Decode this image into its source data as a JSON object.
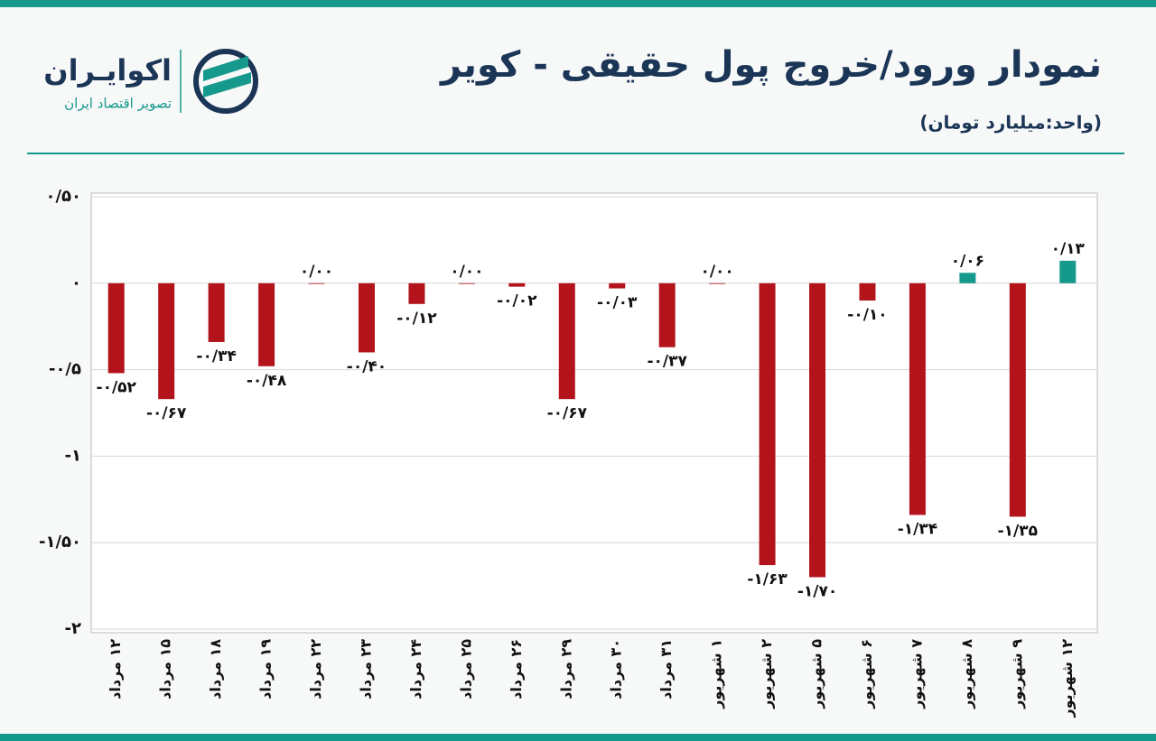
{
  "logo": {
    "name": "اکوایـران",
    "tagline": "تصویر اقتصاد ایران"
  },
  "chart_data": {
    "type": "bar",
    "title": "نمودار ورود/خروج پول حقیقی - کویر",
    "subtitle": "(واحد:میلیارد تومان)",
    "categories": [
      "۱۲ مرداد",
      "۱۵ مرداد",
      "۱۸ مرداد",
      "۱۹ مرداد",
      "۲۲ مرداد",
      "۲۳ مرداد",
      "۲۴ مرداد",
      "۲۵ مرداد",
      "۲۶ مرداد",
      "۲۹ مرداد",
      "۳۰ مرداد",
      "۳۱ مرداد",
      "۱ شهریور",
      "۲ شهریور",
      "۵ شهریور",
      "۶ شهریور",
      "۷ شهریور",
      "۸ شهریور",
      "۹ شهریور",
      "۱۲ شهریور"
    ],
    "values": [
      -0.52,
      -0.67,
      -0.34,
      -0.48,
      0,
      -0.4,
      -0.12,
      0,
      -0.02,
      -0.67,
      -0.03,
      -0.37,
      0,
      -1.63,
      -1.7,
      -0.1,
      -1.34,
      0.06,
      -1.35,
      0.13
    ],
    "value_labels": [
      "-۰/۵۲",
      "-۰/۶۷",
      "-۰/۳۴",
      "-۰/۴۸",
      "۰/۰۰",
      "-۰/۴۰",
      "-۰/۱۲",
      "۰/۰۰",
      "-۰/۰۲",
      "-۰/۶۷",
      "-۰/۰۳",
      "-۰/۳۷",
      "۰/۰۰",
      "-۱/۶۳",
      "-۱/۷۰",
      "-۰/۱۰",
      "-۱/۳۴",
      "۰/۰۶",
      "-۱/۳۵",
      "۰/۱۳"
    ],
    "colors": [
      "#b3141c",
      "#b3141c",
      "#b3141c",
      "#b3141c",
      "#b3141c",
      "#b3141c",
      "#b3141c",
      "#b3141c",
      "#b3141c",
      "#b3141c",
      "#b3141c",
      "#b3141c",
      "#b3141c",
      "#b3141c",
      "#b3141c",
      "#b3141c",
      "#b3141c",
      "#16998d",
      "#b3141c",
      "#16998d"
    ],
    "ylim": [
      -2,
      0.5
    ],
    "yticks": [
      {
        "value": 0.5,
        "label": "۰/۵۰"
      },
      {
        "value": 0,
        "label": "۰"
      },
      {
        "value": -0.5,
        "label": "-۰/۵"
      },
      {
        "value": -1,
        "label": "-۱"
      },
      {
        "value": -1.5,
        "label": "-۱/۵۰"
      },
      {
        "value": -2,
        "label": "-۲"
      }
    ],
    "grid": true
  }
}
